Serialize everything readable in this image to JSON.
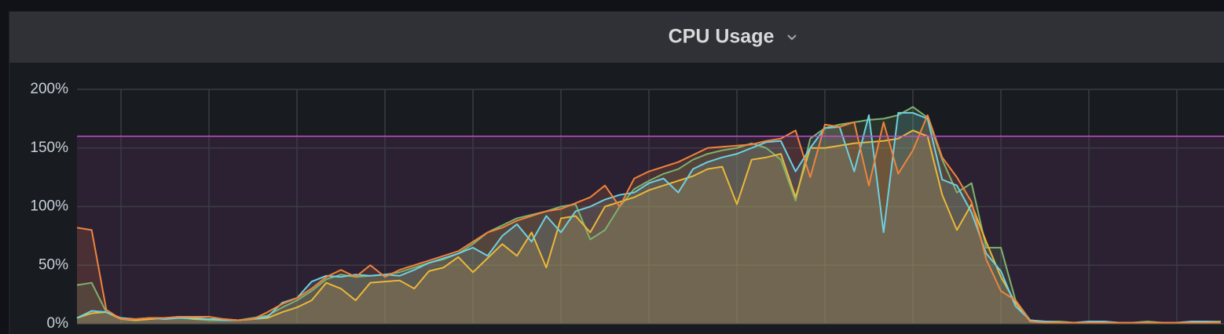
{
  "chart_data": {
    "type": "line",
    "title": "CPU Usage",
    "x": [
      0,
      1,
      2,
      3,
      4,
      5,
      6,
      7,
      8,
      9,
      10,
      11,
      12,
      13,
      14,
      15,
      16,
      17,
      18,
      19,
      20,
      21,
      22,
      23,
      24,
      25,
      26,
      27,
      28,
      29,
      30,
      31,
      32,
      33,
      34,
      35,
      36,
      37,
      38,
      39,
      40,
      41,
      42,
      43,
      44,
      45,
      46,
      47,
      48,
      49,
      50,
      51,
      52,
      53,
      54,
      55,
      56,
      57,
      58,
      59,
      60,
      61,
      62,
      63,
      64,
      65,
      66,
      67,
      68,
      69,
      70,
      71,
      72,
      73,
      74,
      75,
      76,
      77,
      78
    ],
    "xlim": [
      0,
      78
    ],
    "xticks": [
      3,
      9,
      15,
      21,
      27,
      33,
      39,
      45,
      51,
      57,
      63,
      69,
      75
    ],
    "ylim": [
      0,
      200
    ],
    "yticks": [
      {
        "value": 0,
        "label": "0%"
      },
      {
        "value": 50,
        "label": "50%"
      },
      {
        "value": 100,
        "label": "100%"
      },
      {
        "value": 150,
        "label": "150%"
      },
      {
        "value": 200,
        "label": "200%"
      }
    ],
    "grid": true,
    "threshold": 160,
    "threshold_color": "#c04fc8",
    "fill": true,
    "series": [
      {
        "color": "#7eb26d",
        "values": [
          33,
          35,
          10,
          4,
          4,
          4,
          5,
          5,
          4,
          3,
          3,
          3,
          5,
          7,
          14,
          20,
          28,
          38,
          42,
          40,
          41,
          42,
          44,
          48,
          52,
          55,
          60,
          68,
          78,
          84,
          90,
          93,
          96,
          100,
          102,
          72,
          80,
          100,
          115,
          122,
          128,
          132,
          140,
          145,
          148,
          150,
          154,
          150,
          140,
          105,
          158,
          167,
          170,
          172,
          174,
          175,
          178,
          185,
          176,
          140,
          112,
          120,
          65,
          65,
          20,
          3,
          2,
          2,
          1,
          1,
          2,
          1,
          1,
          2,
          1,
          1,
          1,
          2,
          2
        ]
      },
      {
        "color": "#eab839",
        "values": [
          5,
          9,
          10,
          4,
          3,
          4,
          5,
          6,
          4,
          4,
          4,
          3,
          4,
          5,
          10,
          14,
          20,
          35,
          30,
          20,
          35,
          36,
          37,
          30,
          45,
          48,
          57,
          44,
          56,
          68,
          58,
          78,
          48,
          90,
          92,
          78,
          100,
          104,
          108,
          114,
          118,
          122,
          126,
          132,
          134,
          102,
          140,
          142,
          145,
          108,
          150,
          150,
          152,
          154,
          155,
          156,
          158,
          165,
          160,
          110,
          80,
          102,
          70,
          40,
          18,
          2,
          1,
          1,
          1,
          1,
          1,
          1,
          1,
          1,
          1,
          1,
          1,
          1,
          1
        ]
      },
      {
        "color": "#6ed0e0",
        "values": [
          5,
          11,
          10,
          5,
          4,
          5,
          4,
          5,
          5,
          4,
          3,
          3,
          4,
          6,
          18,
          22,
          36,
          41,
          40,
          42,
          41,
          42,
          41,
          46,
          52,
          56,
          60,
          65,
          58,
          75,
          85,
          70,
          92,
          78,
          96,
          100,
          106,
          110,
          112,
          120,
          124,
          112,
          132,
          138,
          142,
          145,
          150,
          155,
          156,
          130,
          150,
          167,
          168,
          130,
          178,
          78,
          180,
          180,
          175,
          123,
          118,
          95,
          60,
          45,
          15,
          3,
          2,
          1,
          1,
          2,
          2,
          1,
          1,
          1,
          1,
          1,
          2,
          2,
          1
        ]
      },
      {
        "color": "#ef843c",
        "values": [
          82,
          80,
          12,
          4,
          4,
          5,
          5,
          6,
          6,
          6,
          4,
          3,
          4,
          10,
          17,
          22,
          30,
          40,
          46,
          40,
          50,
          40,
          46,
          50,
          54,
          58,
          62,
          70,
          78,
          82,
          88,
          92,
          96,
          98,
          103,
          108,
          118,
          100,
          124,
          130,
          134,
          138,
          144,
          150,
          151,
          152,
          153,
          156,
          158,
          165,
          125,
          170,
          168,
          172,
          118,
          172,
          128,
          148,
          178,
          142,
          125,
          104,
          55,
          28,
          20,
          2,
          1,
          1,
          1,
          1,
          1,
          1,
          1,
          1,
          1,
          1,
          1,
          1,
          1
        ]
      }
    ]
  }
}
